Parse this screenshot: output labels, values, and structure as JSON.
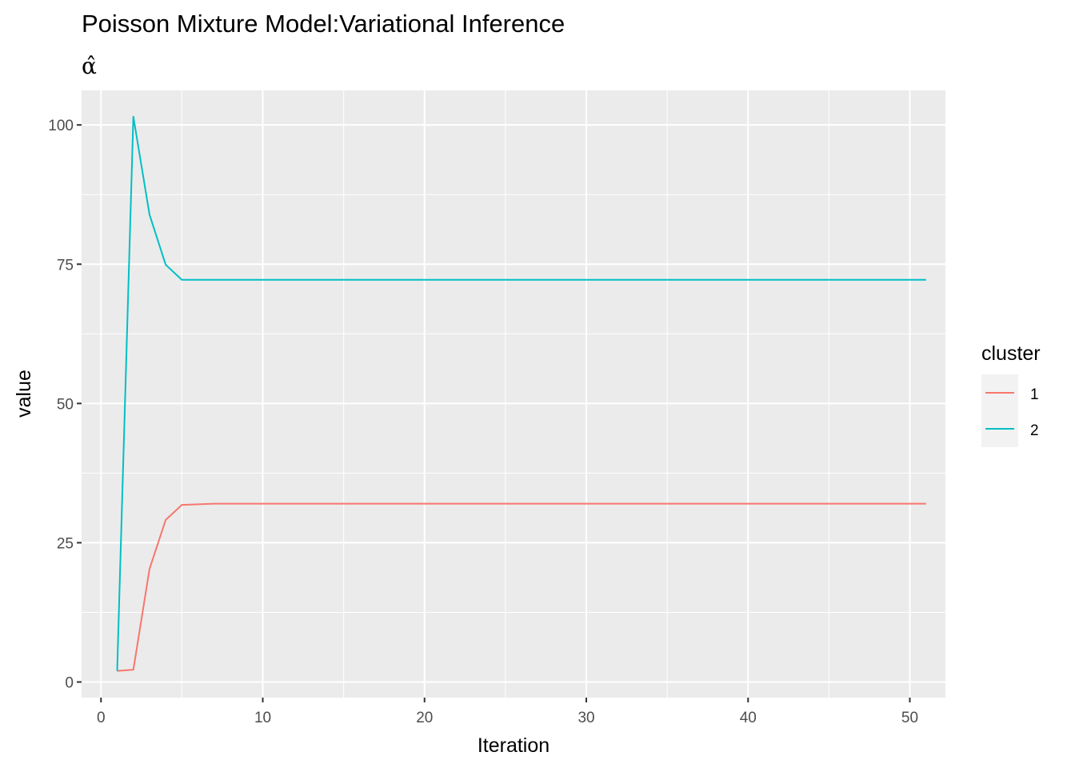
{
  "chart_data": {
    "type": "line",
    "title": "Poisson Mixture Model:Variational Inference",
    "subtitle": "α̂",
    "xlabel": "Iteration",
    "ylabel": "value",
    "xlim": [
      -1.2,
      52.2
    ],
    "ylim": [
      -2.8,
      106.2
    ],
    "x_ticks": [
      0,
      10,
      20,
      30,
      40,
      50
    ],
    "y_ticks": [
      0,
      25,
      50,
      75,
      100
    ],
    "grid": true,
    "legend": {
      "title": "cluster",
      "position": "right"
    },
    "series": [
      {
        "name": "1",
        "color": "#F8766D",
        "x": [
          1,
          2,
          3,
          4,
          5,
          6,
          7,
          8,
          9,
          10,
          15,
          20,
          25,
          30,
          35,
          40,
          45,
          50,
          51
        ],
        "values": [
          2.0,
          2.2,
          20.3,
          29.1,
          31.8,
          31.9,
          32.0,
          32.0,
          32.0,
          32.0,
          32.0,
          32.0,
          32.0,
          32.0,
          32.0,
          32.0,
          32.0,
          32.0,
          32.0
        ]
      },
      {
        "name": "2",
        "color": "#00BFC4",
        "x": [
          1,
          2,
          3,
          4,
          5,
          6,
          7,
          8,
          9,
          10,
          15,
          20,
          25,
          30,
          35,
          40,
          45,
          50,
          51
        ],
        "values": [
          2.0,
          101.5,
          83.9,
          74.9,
          72.2,
          72.2,
          72.2,
          72.2,
          72.2,
          72.2,
          72.2,
          72.2,
          72.2,
          72.2,
          72.2,
          72.2,
          72.2,
          72.2,
          72.2
        ]
      }
    ]
  }
}
